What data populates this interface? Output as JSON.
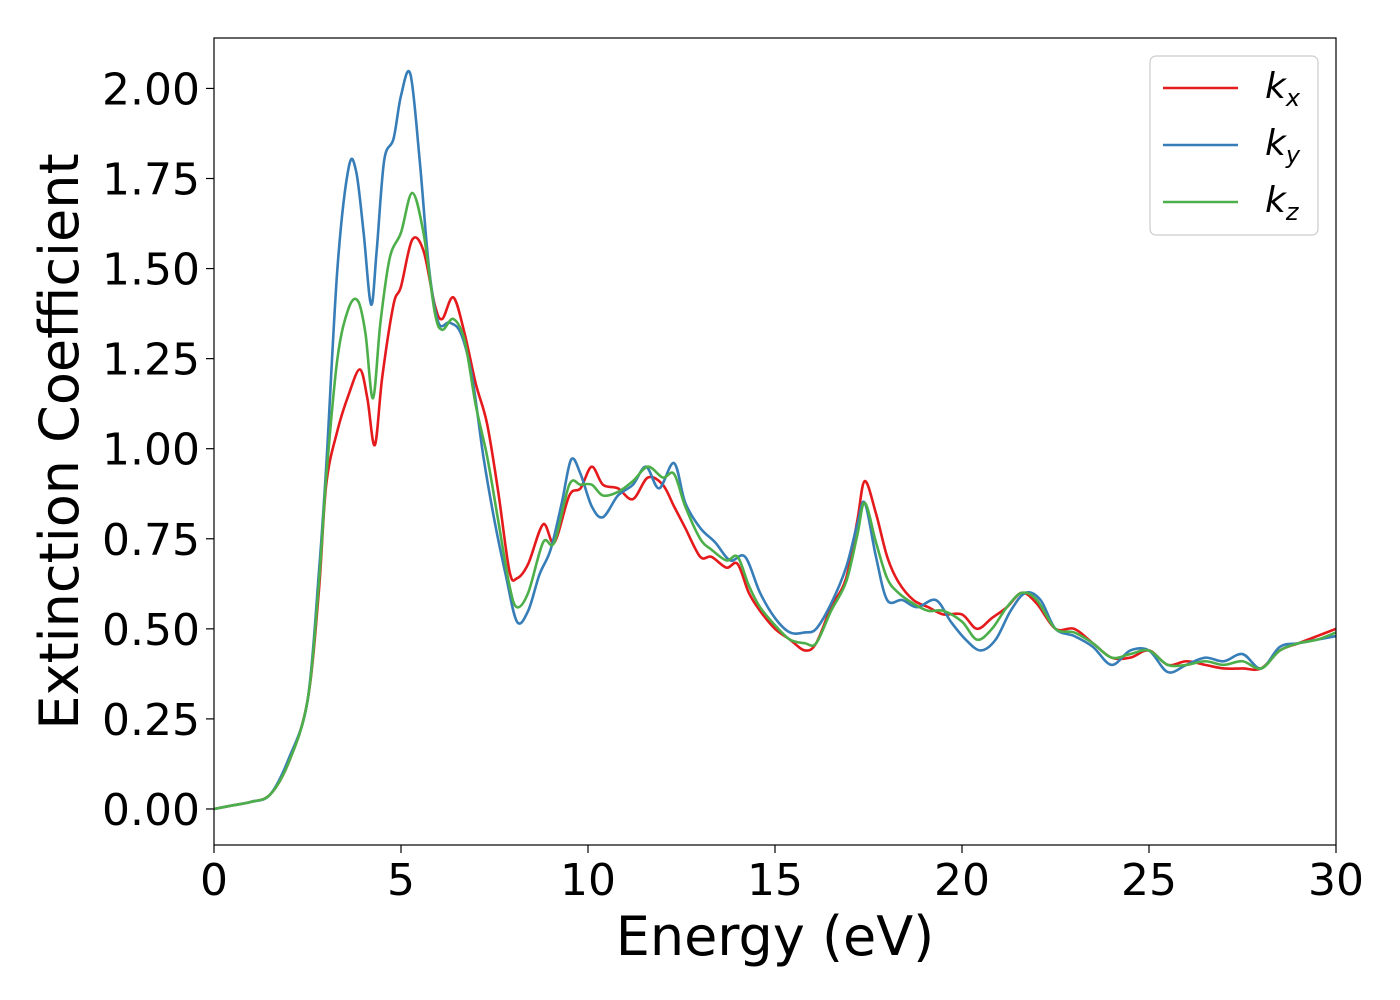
{
  "chart_data": {
    "type": "line",
    "title": "",
    "xlabel": "Energy (eV)",
    "ylabel": "Extinction Coefficient",
    "xlim": [
      0,
      30
    ],
    "ylim": [
      -0.1,
      2.14
    ],
    "xticks": [
      0,
      5,
      10,
      15,
      20,
      25,
      30
    ],
    "xtick_labels": [
      "0",
      "5",
      "10",
      "15",
      "20",
      "25",
      "30"
    ],
    "yticks": [
      0.0,
      0.25,
      0.5,
      0.75,
      1.0,
      1.25,
      1.5,
      1.75,
      2.0
    ],
    "ytick_labels": [
      "0.00",
      "0.25",
      "0.50",
      "0.75",
      "1.00",
      "1.25",
      "1.50",
      "1.75",
      "2.00"
    ],
    "grid": false,
    "legend_position": "top-right",
    "series": [
      {
        "name": "k",
        "subscript": "x",
        "color": "#e41a1c",
        "x": [
          0,
          0.5,
          1.0,
          1.5,
          2.0,
          2.5,
          2.8,
          3.0,
          3.3,
          3.6,
          3.9,
          4.1,
          4.3,
          4.5,
          4.8,
          5.0,
          5.3,
          5.6,
          5.9,
          6.1,
          6.4,
          6.7,
          7.0,
          7.3,
          7.6,
          7.9,
          8.1,
          8.4,
          8.8,
          9.1,
          9.5,
          9.8,
          10.1,
          10.4,
          10.8,
          11.2,
          11.6,
          12.0,
          12.3,
          12.6,
          13.0,
          13.3,
          13.7,
          14.0,
          14.3,
          14.6,
          15.0,
          15.4,
          15.8,
          16.1,
          16.5,
          16.9,
          17.2,
          17.4,
          17.7,
          18.0,
          18.3,
          18.7,
          19.1,
          19.5,
          20.0,
          20.4,
          20.8,
          21.2,
          21.6,
          22.0,
          22.5,
          23.0,
          23.5,
          24.0,
          24.5,
          25.0,
          25.5,
          26.0,
          26.5,
          27.0,
          27.5,
          28.0,
          28.5,
          29.0,
          29.5,
          30.0
        ],
        "values": [
          0.0,
          0.01,
          0.02,
          0.04,
          0.13,
          0.3,
          0.6,
          0.9,
          1.05,
          1.15,
          1.22,
          1.14,
          1.01,
          1.2,
          1.4,
          1.45,
          1.58,
          1.55,
          1.4,
          1.36,
          1.42,
          1.32,
          1.18,
          1.07,
          0.88,
          0.66,
          0.64,
          0.68,
          0.79,
          0.74,
          0.87,
          0.89,
          0.95,
          0.9,
          0.89,
          0.86,
          0.92,
          0.9,
          0.84,
          0.78,
          0.7,
          0.7,
          0.67,
          0.68,
          0.6,
          0.55,
          0.5,
          0.47,
          0.44,
          0.46,
          0.56,
          0.64,
          0.8,
          0.91,
          0.82,
          0.7,
          0.63,
          0.58,
          0.56,
          0.54,
          0.54,
          0.5,
          0.53,
          0.56,
          0.6,
          0.57,
          0.5,
          0.5,
          0.46,
          0.42,
          0.42,
          0.44,
          0.4,
          0.41,
          0.4,
          0.39,
          0.39,
          0.39,
          0.44,
          0.46,
          0.48,
          0.5
        ]
      },
      {
        "name": "k",
        "subscript": "y",
        "color": "#377eb8",
        "x": [
          0,
          0.5,
          1.0,
          1.5,
          2.0,
          2.5,
          2.8,
          3.0,
          3.3,
          3.6,
          3.8,
          4.0,
          4.2,
          4.35,
          4.55,
          4.8,
          5.0,
          5.25,
          5.5,
          5.75,
          6.0,
          6.3,
          6.6,
          6.9,
          7.2,
          7.5,
          7.8,
          8.1,
          8.4,
          8.7,
          9.0,
          9.3,
          9.55,
          9.8,
          10.1,
          10.4,
          10.8,
          11.2,
          11.55,
          11.9,
          12.3,
          12.6,
          13.0,
          13.4,
          13.8,
          14.2,
          14.6,
          15.0,
          15.4,
          15.8,
          16.1,
          16.5,
          16.9,
          17.2,
          17.4,
          17.7,
          18.0,
          18.4,
          18.8,
          19.3,
          19.7,
          20.1,
          20.5,
          20.9,
          21.3,
          21.7,
          22.1,
          22.5,
          23.0,
          23.5,
          24.0,
          24.5,
          25.0,
          25.5,
          26.0,
          26.5,
          27.0,
          27.5,
          28.0,
          28.5,
          29.0,
          29.5,
          30.0
        ],
        "values": [
          0.0,
          0.01,
          0.02,
          0.04,
          0.14,
          0.3,
          0.65,
          0.95,
          1.5,
          1.78,
          1.77,
          1.6,
          1.4,
          1.55,
          1.8,
          1.86,
          1.98,
          2.04,
          1.8,
          1.5,
          1.35,
          1.35,
          1.32,
          1.2,
          0.98,
          0.8,
          0.65,
          0.52,
          0.55,
          0.65,
          0.72,
          0.85,
          0.97,
          0.93,
          0.84,
          0.81,
          0.87,
          0.9,
          0.95,
          0.89,
          0.96,
          0.85,
          0.78,
          0.74,
          0.69,
          0.7,
          0.6,
          0.53,
          0.49,
          0.49,
          0.5,
          0.57,
          0.67,
          0.79,
          0.85,
          0.7,
          0.58,
          0.58,
          0.56,
          0.58,
          0.52,
          0.47,
          0.44,
          0.47,
          0.55,
          0.6,
          0.58,
          0.5,
          0.48,
          0.45,
          0.4,
          0.44,
          0.44,
          0.38,
          0.4,
          0.42,
          0.41,
          0.43,
          0.39,
          0.45,
          0.46,
          0.47,
          0.48
        ]
      },
      {
        "name": "k",
        "subscript": "z",
        "color": "#4daf4a",
        "x": [
          0,
          0.5,
          1.0,
          1.5,
          2.0,
          2.5,
          2.8,
          3.0,
          3.3,
          3.6,
          3.85,
          4.05,
          4.25,
          4.45,
          4.7,
          5.0,
          5.3,
          5.6,
          5.9,
          6.1,
          6.4,
          6.7,
          7.0,
          7.3,
          7.6,
          7.9,
          8.1,
          8.4,
          8.8,
          9.1,
          9.5,
          9.8,
          10.1,
          10.4,
          10.8,
          11.2,
          11.6,
          12.0,
          12.3,
          12.6,
          13.0,
          13.3,
          13.7,
          14.0,
          14.3,
          14.6,
          15.0,
          15.4,
          15.8,
          16.1,
          16.5,
          16.9,
          17.2,
          17.4,
          17.7,
          18.0,
          18.3,
          18.7,
          19.1,
          19.5,
          20.0,
          20.4,
          20.8,
          21.2,
          21.6,
          22.0,
          22.5,
          23.0,
          23.5,
          24.0,
          24.5,
          25.0,
          25.5,
          26.0,
          26.5,
          27.0,
          27.5,
          28.0,
          28.5,
          29.0,
          29.5,
          30.0
        ],
        "values": [
          0.0,
          0.01,
          0.02,
          0.04,
          0.13,
          0.3,
          0.62,
          0.92,
          1.25,
          1.39,
          1.41,
          1.32,
          1.14,
          1.35,
          1.53,
          1.6,
          1.71,
          1.6,
          1.38,
          1.33,
          1.36,
          1.3,
          1.12,
          0.98,
          0.8,
          0.62,
          0.56,
          0.6,
          0.74,
          0.74,
          0.9,
          0.9,
          0.9,
          0.87,
          0.88,
          0.91,
          0.95,
          0.92,
          0.93,
          0.84,
          0.75,
          0.72,
          0.69,
          0.7,
          0.62,
          0.56,
          0.51,
          0.47,
          0.46,
          0.46,
          0.55,
          0.63,
          0.76,
          0.85,
          0.74,
          0.64,
          0.6,
          0.57,
          0.55,
          0.55,
          0.52,
          0.47,
          0.5,
          0.56,
          0.6,
          0.58,
          0.5,
          0.49,
          0.46,
          0.42,
          0.43,
          0.44,
          0.4,
          0.4,
          0.41,
          0.4,
          0.41,
          0.39,
          0.44,
          0.46,
          0.47,
          0.49
        ]
      }
    ]
  }
}
